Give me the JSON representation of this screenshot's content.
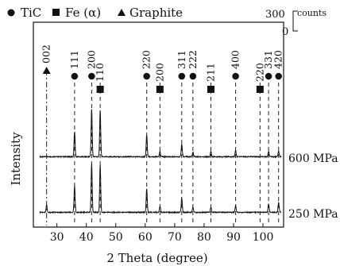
{
  "chart_data": {
    "type": "line",
    "xlabel": "2 Theta (degree)",
    "ylabel": "Intensity",
    "xlim": [
      22,
      107
    ],
    "x_ticks": [
      30,
      40,
      50,
      60,
      70,
      80,
      90,
      100
    ],
    "grid": false,
    "legend": {
      "placement": "top",
      "entries": [
        {
          "symbol": "circle",
          "label": "TiC"
        },
        {
          "symbol": "square",
          "label": "Fe (α)"
        },
        {
          "symbol": "triangle",
          "label": "Graphite"
        }
      ]
    },
    "scale_bar": {
      "top": "300",
      "bottom": "0",
      "unit": "counts",
      "counts": 300
    },
    "peaks": [
      {
        "x": 26.5,
        "phase": "graphite",
        "hkl": "002"
      },
      {
        "x": 36.0,
        "phase": "TiC",
        "hkl": "111"
      },
      {
        "x": 41.8,
        "phase": "TiC",
        "hkl": "200"
      },
      {
        "x": 44.7,
        "phase": "Fe",
        "hkl": "110"
      },
      {
        "x": 60.5,
        "phase": "TiC",
        "hkl": "220"
      },
      {
        "x": 65.0,
        "phase": "Fe",
        "hkl": "200"
      },
      {
        "x": 72.4,
        "phase": "TiC",
        "hkl": "311"
      },
      {
        "x": 76.2,
        "phase": "TiC",
        "hkl": "222"
      },
      {
        "x": 82.3,
        "phase": "Fe",
        "hkl": "211"
      },
      {
        "x": 90.7,
        "phase": "TiC",
        "hkl": "400"
      },
      {
        "x": 99.0,
        "phase": "Fe",
        "hkl": "220"
      },
      {
        "x": 101.9,
        "phase": "TiC",
        "hkl": "331"
      },
      {
        "x": 105.3,
        "phase": "TiC",
        "hkl": "420"
      }
    ],
    "series": [
      {
        "name": "600 MPa",
        "baseline_counts": 0,
        "peaks": [
          {
            "x": 36.0,
            "y": 380
          },
          {
            "x": 41.8,
            "y": 720
          },
          {
            "x": 44.7,
            "y": 700
          },
          {
            "x": 60.5,
            "y": 330
          },
          {
            "x": 65.0,
            "y": 80
          },
          {
            "x": 72.4,
            "y": 190
          },
          {
            "x": 76.2,
            "y": 70
          },
          {
            "x": 82.3,
            "y": 80
          },
          {
            "x": 90.7,
            "y": 100
          },
          {
            "x": 101.9,
            "y": 80
          },
          {
            "x": 105.3,
            "y": 90
          }
        ]
      },
      {
        "name": "250 MPa",
        "baseline_counts": 0,
        "peaks": [
          {
            "x": 26.5,
            "y": 110
          },
          {
            "x": 36.0,
            "y": 400
          },
          {
            "x": 41.8,
            "y": 740
          },
          {
            "x": 44.7,
            "y": 720
          },
          {
            "x": 60.5,
            "y": 360
          },
          {
            "x": 65.0,
            "y": 90
          },
          {
            "x": 72.4,
            "y": 220
          },
          {
            "x": 76.2,
            "y": 80
          },
          {
            "x": 82.3,
            "y": 80
          },
          {
            "x": 90.7,
            "y": 100
          },
          {
            "x": 101.9,
            "y": 130
          },
          {
            "x": 105.3,
            "y": 150
          }
        ]
      }
    ]
  }
}
